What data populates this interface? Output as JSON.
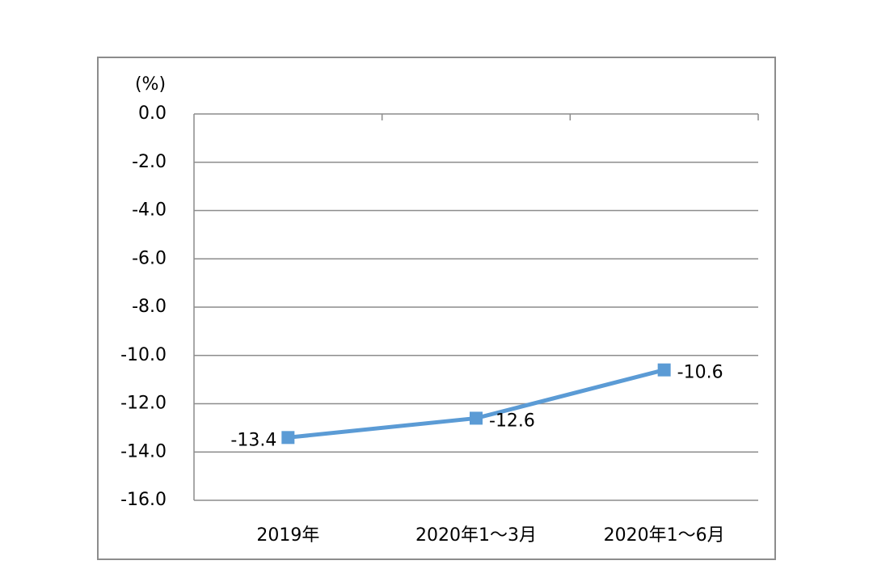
{
  "chart_data": {
    "type": "line",
    "y_unit_label": "(%)",
    "categories": [
      "2019年",
      "2020年1～3月",
      "2020年1～6月"
    ],
    "values": [
      -13.4,
      -12.6,
      -10.6
    ],
    "color": "#5b9bd5",
    "ylim": [
      -16,
      0
    ],
    "yticks": [
      {
        "value": 0,
        "label": "0.0"
      },
      {
        "value": -2,
        "label": "-2.0"
      },
      {
        "value": -4,
        "label": "-4.0"
      },
      {
        "value": -6,
        "label": "-6.0"
      },
      {
        "value": -8,
        "label": "-8.0"
      },
      {
        "value": -10,
        "label": "-10.0"
      },
      {
        "value": -12,
        "label": "-12.0"
      },
      {
        "value": -14,
        "label": "-14.0"
      },
      {
        "value": -16,
        "label": "-16.0"
      }
    ],
    "grid": true
  }
}
